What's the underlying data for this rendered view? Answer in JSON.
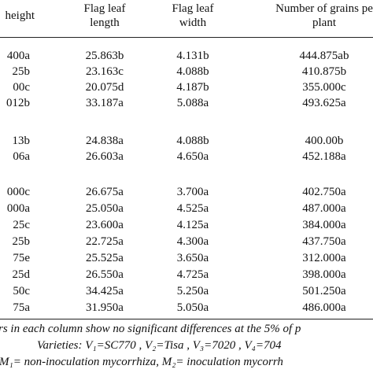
{
  "table": {
    "header": [
      [
        "height"
      ],
      [
        "Flag leaf",
        "length"
      ],
      [
        "Flag leaf",
        "width"
      ],
      [
        "Number of grains pe",
        "plant"
      ]
    ],
    "groups": [
      [
        [
          "400a",
          "25.863b",
          "4.131b",
          "444.875ab"
        ],
        [
          "25b",
          "23.163c",
          "4.088b",
          "410.875b"
        ],
        [
          "00c",
          "20.075d",
          "4.187b",
          "355.000c"
        ],
        [
          "012b",
          "33.187a",
          "5.088a",
          "493.625a"
        ]
      ],
      [
        [
          "13b",
          "24.838a",
          "4.088b",
          "400.00b"
        ],
        [
          "06a",
          "26.603a",
          "4.650a",
          "452.188a"
        ]
      ],
      [
        [
          "000c",
          "26.675a",
          "3.700a",
          "402.750a"
        ],
        [
          "000a",
          "25.050a",
          "4.525a",
          "487.000a"
        ],
        [
          "25c",
          "23.600a",
          "4.125a",
          "384.000a"
        ],
        [
          "25b",
          "22.725a",
          "4.300a",
          "437.750a"
        ],
        [
          "75e",
          "25.525a",
          "3.650a",
          "312.000a"
        ],
        [
          "25d",
          "26.550a",
          "4.725a",
          "398.000a"
        ],
        [
          "50c",
          "34.425a",
          "5.250a",
          "501.250a"
        ],
        [
          "75a",
          "31.950a",
          "5.050a",
          "486.000a"
        ]
      ]
    ],
    "notes": [
      "rs in each column show no significant differences at the 5% of p",
      "Varieties: V₁=SC770 , V₂=Tisa , V₃=7020 , V₄=704",
      "M₁= non-inoculation mycorrhiza, M₂= inoculation mycorrh"
    ]
  }
}
